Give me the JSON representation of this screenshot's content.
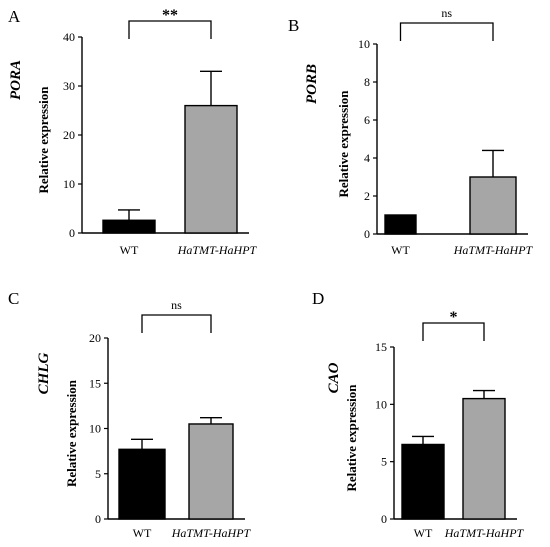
{
  "chart_data": [
    {
      "panel": "A",
      "type": "bar",
      "gene_label": "PORA",
      "ylabel": "Relative expression",
      "categories": [
        "WT",
        "HaTMT-HaHPT"
      ],
      "values": [
        2.6,
        26
      ],
      "errors": [
        2.1,
        7
      ],
      "ylim": [
        0,
        40
      ],
      "yticks": [
        0,
        10,
        20,
        30,
        40
      ],
      "significance": "**",
      "bar_colors": [
        "#000000",
        "#a6a6a6"
      ]
    },
    {
      "panel": "B",
      "type": "bar",
      "gene_label": "PORB",
      "ylabel": "Relative expression",
      "categories": [
        "WT",
        "HaTMT-HaHPT"
      ],
      "values": [
        1.0,
        3.0
      ],
      "errors": [
        0,
        1.4
      ],
      "ylim": [
        0,
        10
      ],
      "yticks": [
        0,
        2,
        4,
        6,
        8,
        10
      ],
      "significance": "ns",
      "bar_colors": [
        "#000000",
        "#a6a6a6"
      ]
    },
    {
      "panel": "C",
      "type": "bar",
      "gene_label": "CHLG",
      "ylabel": "Relative expression",
      "categories": [
        "WT",
        "HaTMT-HaHPT"
      ],
      "values": [
        7.7,
        10.5
      ],
      "errors": [
        1.1,
        0.7
      ],
      "ylim": [
        0,
        20
      ],
      "yticks": [
        0,
        5,
        10,
        15,
        20
      ],
      "significance": "ns",
      "bar_colors": [
        "#000000",
        "#a6a6a6"
      ]
    },
    {
      "panel": "D",
      "type": "bar",
      "gene_label": "CAO",
      "ylabel": "Relative expression",
      "categories": [
        "WT",
        "HaTMT-HaHPT"
      ],
      "values": [
        6.5,
        10.5
      ],
      "errors": [
        0.7,
        0.7
      ],
      "ylim": [
        0,
        15
      ],
      "yticks": [
        0,
        5,
        10,
        15
      ],
      "significance": "*",
      "bar_colors": [
        "#000000",
        "#a6a6a6"
      ]
    }
  ]
}
